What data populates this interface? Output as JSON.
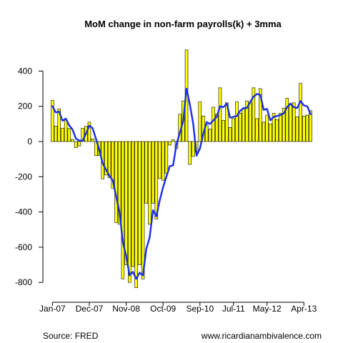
{
  "chart_data": {
    "type": "bar",
    "title": "MoM change in non-farm payrolls(k) + 3mma",
    "xlabel": "",
    "ylabel": "",
    "ylim": [
      -860,
      560
    ],
    "yticks": [
      -800,
      -600,
      -400,
      -200,
      0,
      200,
      400
    ],
    "xtick_labels": [
      "Jan-07",
      "Dec-07",
      "Nov-08",
      "Oct-09",
      "Sep-10",
      "Jul-11",
      "May-12",
      "Apr-13"
    ],
    "xtick_months": [
      0,
      11,
      22,
      33,
      44,
      54,
      64,
      75
    ],
    "start_month": "Jan-07",
    "grid": false,
    "legend": "none",
    "bar_color": "#ffff00",
    "bar_edge_color": "#000000",
    "line_color": "#1a2ee8",
    "series": [
      {
        "type": "bar",
        "values": [
          233,
          88,
          185,
          75,
          122,
          74,
          12,
          -35,
          -25,
          75,
          86,
          110,
          15,
          -80,
          -80,
          -212,
          -190,
          -205,
          -265,
          -460,
          -470,
          -780,
          -700,
          -800,
          -710,
          -830,
          -700,
          -780,
          -350,
          -470,
          -350,
          -440,
          -210,
          -220,
          -180,
          -20,
          10,
          -40,
          155,
          230,
          520,
          -130,
          -85,
          -60,
          225,
          145,
          95,
          70,
          195,
          155,
          305,
          120,
          220,
          80,
          130,
          225,
          160,
          185,
          230,
          220,
          305,
          130,
          300,
          110,
          150,
          100,
          160,
          125,
          160,
          190,
          245,
          215,
          220,
          140,
          330,
          145,
          150,
          175
        ]
      },
      {
        "type": "line",
        "values": [
          200,
          165,
          170,
          118,
          130,
          92,
          68,
          17,
          5,
          5,
          45,
          90,
          75,
          15,
          -48,
          -125,
          -160,
          -195,
          -220,
          -310,
          -400,
          -570,
          -650,
          -760,
          -740,
          -780,
          -745,
          -760,
          -610,
          -545,
          -390,
          -425,
          -335,
          -260,
          -200,
          -140,
          -135,
          -15,
          50,
          115,
          300,
          210,
          100,
          -80,
          -40,
          45,
          110,
          100,
          120,
          140,
          200,
          195,
          215,
          135,
          140,
          145,
          175,
          190,
          190,
          225,
          255,
          270,
          265,
          180,
          185,
          120,
          140,
          145,
          150,
          160,
          195,
          215,
          195,
          190,
          230,
          205,
          200,
          155
        ]
      }
    ]
  },
  "footer": {
    "source": "Source: FRED",
    "website": "www.ricardianambivalence.com"
  }
}
